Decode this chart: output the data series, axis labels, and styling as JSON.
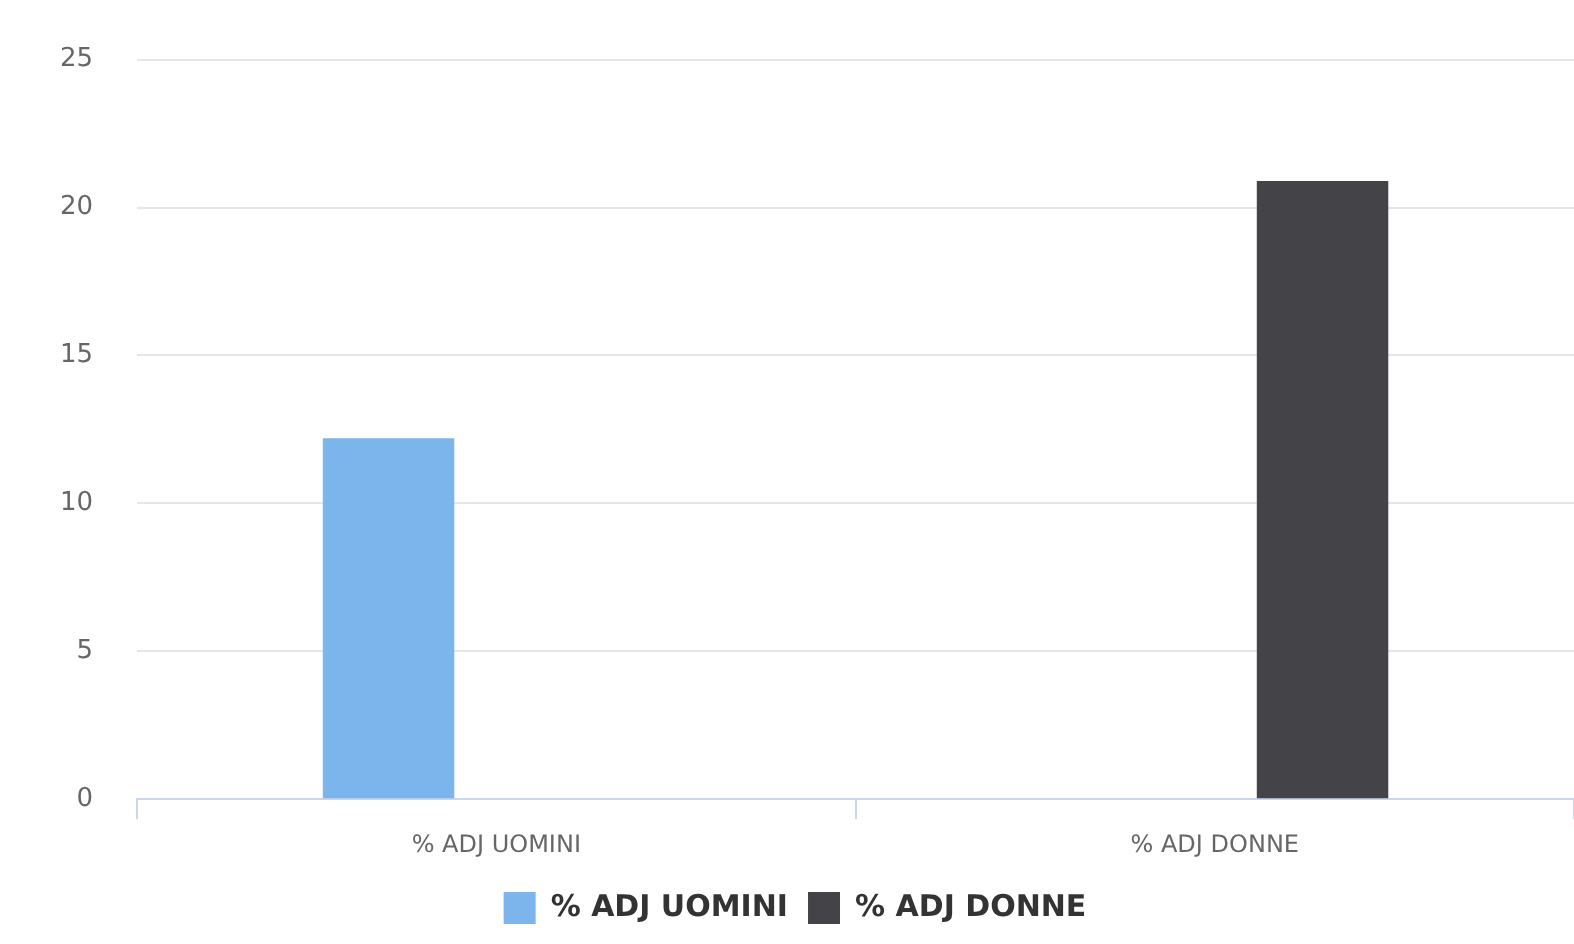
{
  "chart_data": {
    "type": "bar",
    "categories": [
      "% ADJ UOMINI",
      "% ADJ DONNE"
    ],
    "series": [
      {
        "name": "% ADJ UOMINI",
        "color": "#7cb5ec",
        "values": [
          12.2,
          null
        ]
      },
      {
        "name": "% ADJ DONNE",
        "color": "#434348",
        "values": [
          null,
          20.9
        ]
      }
    ],
    "ylim": [
      0,
      25
    ],
    "yticks": [
      0,
      5,
      10,
      15,
      20,
      25
    ],
    "grid": "y",
    "legend": "bottom"
  }
}
